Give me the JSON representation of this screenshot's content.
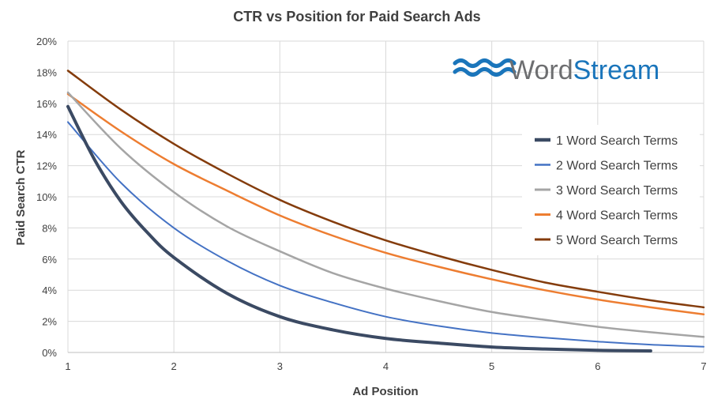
{
  "chart_data": {
    "type": "line",
    "title": "CTR vs Position for Paid Search Ads",
    "xlabel": "Ad Position",
    "ylabel": "Paid Search CTR",
    "xlim": [
      1,
      7
    ],
    "ylim": [
      0,
      20
    ],
    "x_ticks": [
      "1",
      "2",
      "3",
      "4",
      "5",
      "6",
      "7"
    ],
    "y_ticks": [
      "0%",
      "2%",
      "4%",
      "6%",
      "8%",
      "10%",
      "12%",
      "14%",
      "16%",
      "18%",
      "20%"
    ],
    "grid": true,
    "legend_position": "right",
    "x": [
      1,
      1.5,
      2,
      2.5,
      3,
      3.5,
      4,
      4.5,
      5,
      5.5,
      6,
      6.5,
      7
    ],
    "series": [
      {
        "name": "1 Word Search Terms",
        "color": "#3b4a63",
        "width": 4,
        "x": [
          1,
          1.25,
          1.5,
          1.75,
          2,
          2.5,
          3,
          3.5,
          4,
          4.5,
          5,
          5.5,
          6,
          6.5
        ],
        "values": [
          15.8,
          12.4,
          9.7,
          7.7,
          6.1,
          3.8,
          2.3,
          1.45,
          0.9,
          0.6,
          0.35,
          0.22,
          0.14,
          0.1
        ]
      },
      {
        "name": "2 Word Search Terms",
        "color": "#4472c4",
        "width": 2,
        "values": [
          14.8,
          10.9,
          8.0,
          5.9,
          4.3,
          3.2,
          2.3,
          1.7,
          1.25,
          0.95,
          0.7,
          0.5,
          0.37
        ]
      },
      {
        "name": "3 Word Search Terms",
        "color": "#a5a5a5",
        "width": 2.5,
        "values": [
          16.7,
          13.1,
          10.3,
          8.1,
          6.5,
          5.1,
          4.1,
          3.3,
          2.6,
          2.1,
          1.65,
          1.3,
          1.0
        ]
      },
      {
        "name": "4 Word Search Terms",
        "color": "#ed7d31",
        "width": 2.5,
        "values": [
          16.6,
          14.2,
          12.1,
          10.4,
          8.8,
          7.5,
          6.4,
          5.5,
          4.7,
          4.0,
          3.4,
          2.9,
          2.45
        ]
      },
      {
        "name": "5 Word Search Terms",
        "color": "#843c0c",
        "width": 2.5,
        "values": [
          18.1,
          15.6,
          13.4,
          11.5,
          9.8,
          8.4,
          7.2,
          6.2,
          5.3,
          4.5,
          3.9,
          3.35,
          2.9
        ]
      }
    ]
  },
  "logo": {
    "name": "wordstream-logo",
    "text_word": "Word",
    "text_stream": "Stream",
    "icon": "wave-icon",
    "colors": {
      "word": "#6d6e70",
      "stream": "#1a75bb",
      "waves": "#1a75bb"
    }
  }
}
